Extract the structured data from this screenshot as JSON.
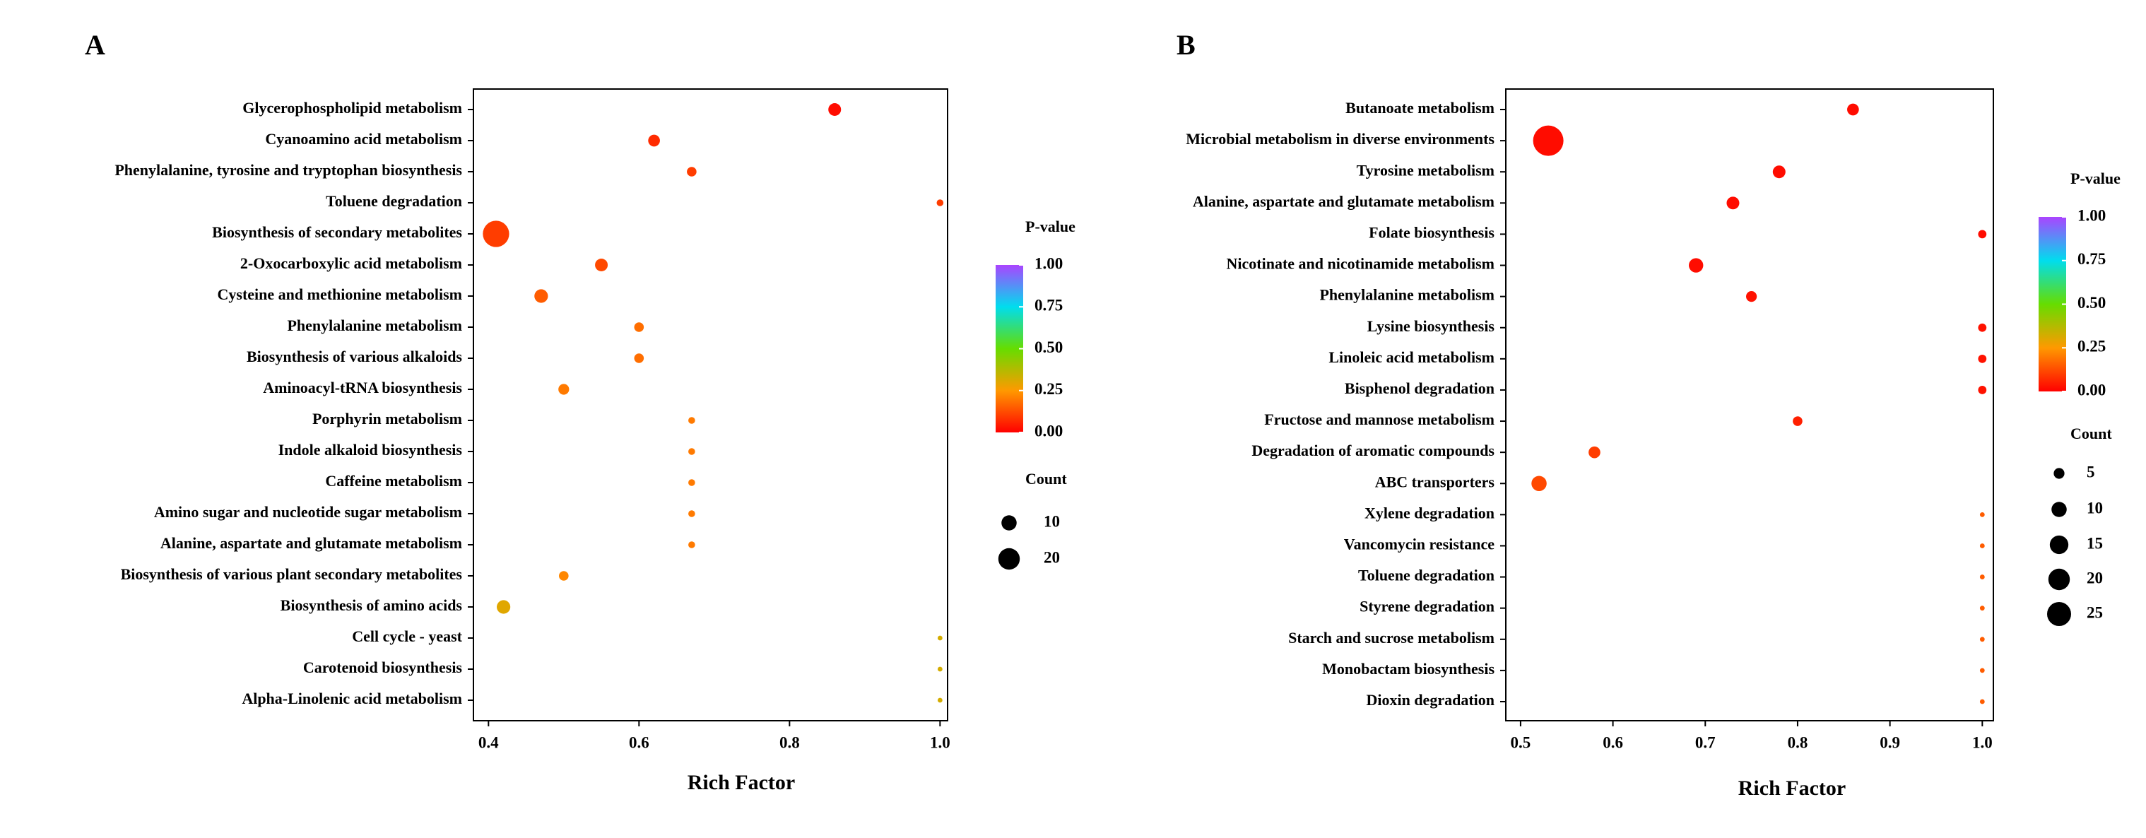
{
  "chart_data": [
    {
      "type": "bubble",
      "label": "A",
      "xlabel": "Rich Factor",
      "categories": [
        "Glycerophospholipid metabolism",
        "Cyanoamino acid metabolism",
        "Phenylalanine, tyrosine and tryptophan biosynthesis",
        "Toluene degradation",
        "Biosynthesis of secondary metabolites",
        "2-Oxocarboxylic acid metabolism",
        "Cysteine and methionine metabolism",
        "Phenylalanine metabolism",
        "Biosynthesis of various alkaloids",
        "Aminoacyl-tRNA biosynthesis",
        "Porphyrin metabolism",
        "Indole alkaloid biosynthesis",
        "Caffeine metabolism",
        "Amino sugar and nucleotide sugar metabolism",
        "Alanine, aspartate and glutamate metabolism",
        "Biosynthesis of various plant secondary metabolites",
        "Biosynthesis of amino acids",
        "Cell cycle - yeast",
        "Carotenoid biosynthesis",
        "Alpha-Linolenic acid metabolism"
      ],
      "rich_factor": [
        0.86,
        0.62,
        0.67,
        1.0,
        0.41,
        0.55,
        0.47,
        0.6,
        0.6,
        0.5,
        0.67,
        0.67,
        0.67,
        0.67,
        0.67,
        0.5,
        0.42,
        1.0,
        1.0,
        1.0
      ],
      "count": [
        7,
        6,
        4,
        2,
        30,
        7,
        8,
        4,
        4,
        5,
        2,
        2,
        2,
        2,
        2,
        4,
        8,
        1,
        1,
        1
      ],
      "p_value": [
        0.02,
        0.07,
        0.1,
        0.1,
        0.1,
        0.12,
        0.15,
        0.18,
        0.18,
        0.2,
        0.2,
        0.2,
        0.2,
        0.2,
        0.2,
        0.22,
        0.3,
        0.32,
        0.32,
        0.32
      ],
      "xlim": [
        0.38,
        1.01
      ],
      "xticks": [
        0.4,
        0.6,
        0.8,
        {
          "value": 1,
          "label": "1.0"
        }
      ],
      "colorbar": {
        "title": "P-value",
        "lim": [
          0,
          1
        ],
        "colors": [
          "#ff0000",
          "#ff9900",
          "#66dd00",
          "#00ddee",
          "#aa44ff"
        ],
        "ticks": [
          {
            "value": 0,
            "label": "0.00"
          },
          0.25,
          {
            "value": 0.5,
            "label": "0.50"
          },
          0.75,
          {
            "value": 1,
            "label": "1.00"
          }
        ]
      },
      "size_legend": {
        "title": "Count",
        "values": [
          10,
          20
        ]
      }
    },
    {
      "type": "bubble",
      "label": "B",
      "xlabel": "Rich Factor",
      "categories": [
        "Butanoate metabolism",
        "Microbial metabolism in diverse environments",
        "Tyrosine metabolism",
        "Alanine, aspartate and glutamate metabolism",
        "Folate biosynthesis",
        "Nicotinate and nicotinamide metabolism",
        "Phenylalanine metabolism",
        "Lysine biosynthesis",
        "Linoleic acid metabolism",
        "Bisphenol degradation",
        "Fructose and mannose metabolism",
        "Degradation of aromatic compounds",
        "ABC transporters",
        "Xylene degradation",
        "Vancomycin resistance",
        "Toluene degradation",
        "Styrene degradation",
        "Starch and sucrose metabolism",
        "Monobactam biosynthesis",
        "Dioxin degradation"
      ],
      "rich_factor": [
        0.86,
        0.53,
        0.78,
        0.73,
        1.0,
        0.69,
        0.75,
        1.0,
        1.0,
        1.0,
        0.8,
        0.58,
        0.52,
        1.0,
        1.0,
        1.0,
        1.0,
        1.0,
        1.0,
        1.0
      ],
      "count": [
        6,
        40,
        7,
        7,
        3,
        9,
        5,
        3,
        3,
        3,
        4,
        6,
        10,
        1,
        1,
        1,
        1,
        1,
        1,
        1
      ],
      "p_value": [
        0.02,
        0.02,
        0.02,
        0.02,
        0.02,
        0.02,
        0.03,
        0.03,
        0.03,
        0.03,
        0.05,
        0.1,
        0.12,
        0.15,
        0.15,
        0.15,
        0.15,
        0.15,
        0.15,
        0.15
      ],
      "xlim": [
        0.484,
        1.012
      ],
      "xticks": [
        0.5,
        0.6,
        0.7,
        0.8,
        0.9,
        {
          "value": 1,
          "label": "1.0"
        }
      ],
      "colorbar": {
        "title": "P-value",
        "lim": [
          0,
          1
        ],
        "colors": [
          "#ff0000",
          "#ff9900",
          "#66dd00",
          "#00ddee",
          "#aa44ff"
        ],
        "ticks": [
          {
            "value": 0,
            "label": "0.00"
          },
          0.25,
          {
            "value": 0.5,
            "label": "0.50"
          },
          0.75,
          {
            "value": 1,
            "label": "1.00"
          }
        ]
      },
      "size_legend": {
        "title": "Count",
        "values": [
          5,
          10,
          15,
          20,
          25
        ]
      }
    }
  ]
}
